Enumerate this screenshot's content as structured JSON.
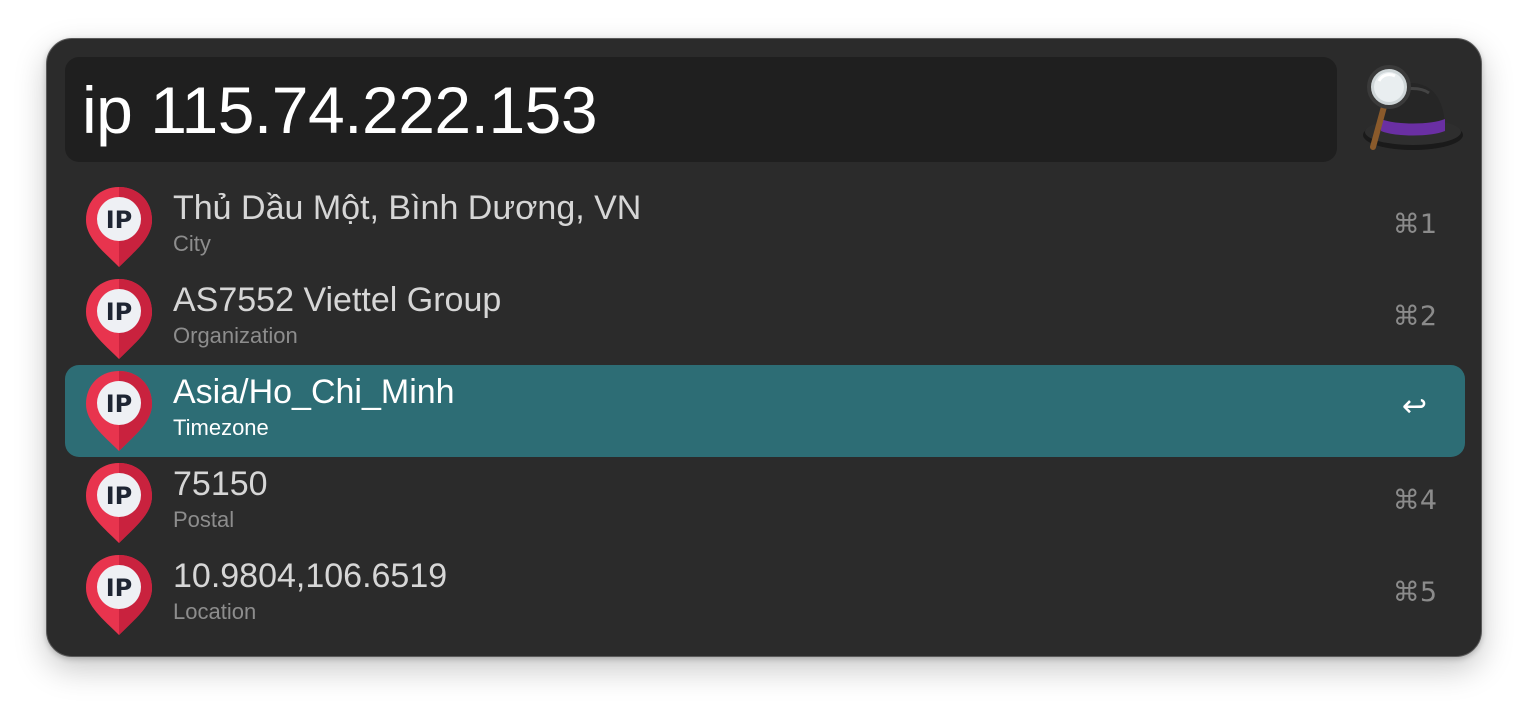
{
  "search": {
    "query": "ip 115.74.222.153"
  },
  "app": {
    "icon": "alfred-hat-icon",
    "accent_color": "#2d6d75",
    "pin_color": "#e8344e"
  },
  "results": [
    {
      "title": "Thủ Dầu Một, Bình Dương, VN",
      "subtitle": "City",
      "shortcut": "⌘1",
      "icon": "ip-pin-icon",
      "selected": false
    },
    {
      "title": "AS7552 Viettel Group",
      "subtitle": "Organization",
      "shortcut": "⌘2",
      "icon": "ip-pin-icon",
      "selected": false
    },
    {
      "title": "Asia/Ho_Chi_Minh",
      "subtitle": "Timezone",
      "shortcut": "↩",
      "icon": "ip-pin-icon",
      "selected": true
    },
    {
      "title": "75150",
      "subtitle": "Postal",
      "shortcut": "⌘4",
      "icon": "ip-pin-icon",
      "selected": false
    },
    {
      "title": "10.9804,106.6519",
      "subtitle": "Location",
      "shortcut": "⌘5",
      "icon": "ip-pin-icon",
      "selected": false
    }
  ]
}
